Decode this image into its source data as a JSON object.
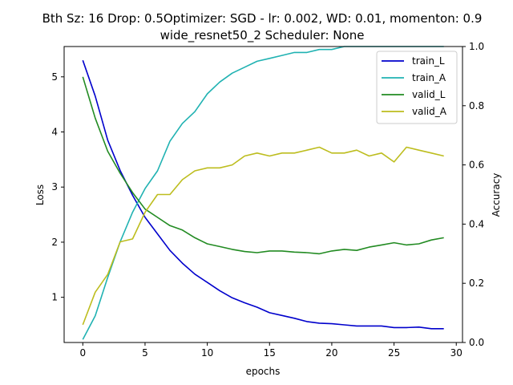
{
  "chart_data": {
    "type": "line",
    "title_line1": "Bth Sz: 16 Drop: 0.5Optimizer: SGD - lr: 0.002, WD: 0.01, momenton: 0.9",
    "title_line2": "wide_resnet50_2 Scheduler: None",
    "xlabel": "epochs",
    "ylabel_left": "Loss",
    "ylabel_right": "Accuracy",
    "xlim": [
      -1.5,
      30.5
    ],
    "ylim_left": [
      0.18,
      5.55
    ],
    "ylim_right": [
      0.0,
      1.0
    ],
    "x_ticks": [
      "0",
      "5",
      "10",
      "15",
      "20",
      "25",
      "30"
    ],
    "y_left_ticks": [
      "1",
      "2",
      "3",
      "4",
      "5"
    ],
    "y_right_ticks": [
      "0.0",
      "0.2",
      "0.4",
      "0.6",
      "0.8",
      "1.0"
    ],
    "legend_position": "top-right",
    "grid": false,
    "x": [
      0,
      1,
      2,
      3,
      4,
      5,
      6,
      7,
      8,
      9,
      10,
      11,
      12,
      13,
      14,
      15,
      16,
      17,
      18,
      19,
      20,
      21,
      22,
      23,
      24,
      25,
      26,
      27,
      28,
      29
    ],
    "series": [
      {
        "name": "train_L",
        "axis": "left",
        "color": "#0000cc",
        "values": [
          5.3,
          4.65,
          3.85,
          3.3,
          2.85,
          2.45,
          2.15,
          1.85,
          1.62,
          1.42,
          1.27,
          1.12,
          0.99,
          0.9,
          0.82,
          0.72,
          0.67,
          0.62,
          0.56,
          0.53,
          0.52,
          0.5,
          0.48,
          0.48,
          0.48,
          0.45,
          0.45,
          0.46,
          0.43,
          0.43
        ]
      },
      {
        "name": "train_A",
        "axis": "right",
        "color": "#20b2b2",
        "values": [
          0.01,
          0.09,
          0.22,
          0.34,
          0.44,
          0.52,
          0.58,
          0.68,
          0.74,
          0.78,
          0.84,
          0.88,
          0.91,
          0.93,
          0.95,
          0.96,
          0.97,
          0.98,
          0.98,
          0.99,
          0.99,
          1.0,
          1.0,
          1.0,
          1.0,
          1.0,
          1.0,
          1.0,
          1.0,
          1.0
        ]
      },
      {
        "name": "valid_L",
        "axis": "left",
        "color": "#228b22",
        "values": [
          5.0,
          4.25,
          3.65,
          3.25,
          2.9,
          2.6,
          2.45,
          2.3,
          2.22,
          2.08,
          1.97,
          1.92,
          1.87,
          1.83,
          1.81,
          1.84,
          1.84,
          1.82,
          1.81,
          1.79,
          1.84,
          1.87,
          1.85,
          1.91,
          1.95,
          1.99,
          1.95,
          1.97,
          2.04,
          2.08
        ]
      },
      {
        "name": "valid_A",
        "axis": "right",
        "color": "#bdbd1e",
        "values": [
          0.06,
          0.17,
          0.23,
          0.34,
          0.35,
          0.44,
          0.5,
          0.5,
          0.55,
          0.58,
          0.59,
          0.59,
          0.6,
          0.63,
          0.64,
          0.63,
          0.64,
          0.64,
          0.65,
          0.66,
          0.64,
          0.64,
          0.65,
          0.63,
          0.64,
          0.61,
          0.66,
          0.65,
          0.64,
          0.63
        ]
      }
    ]
  }
}
